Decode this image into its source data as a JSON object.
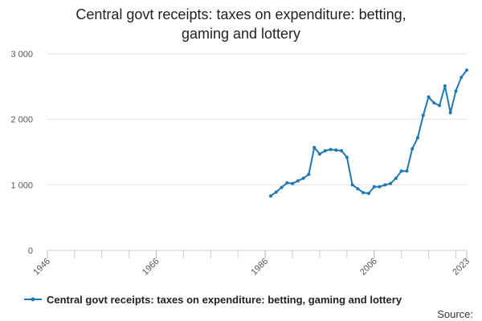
{
  "chart_data": {
    "type": "line",
    "title_line1": "Central govt receipts: taxes on expenditure: betting,",
    "title_line2": "gaming and lottery",
    "xlabel": "",
    "ylabel": "",
    "x_tick_labels": [
      "1946",
      "1966",
      "1986",
      "2006",
      "2023"
    ],
    "x_ticks": [
      1946,
      1966,
      1986,
      2006,
      2023
    ],
    "y_tick_labels": [
      "0",
      "1 000",
      "2 000",
      "3 000"
    ],
    "y_ticks": [
      0,
      1000,
      2000,
      3000
    ],
    "xlim": [
      1946,
      2023
    ],
    "ylim": [
      0,
      3000
    ],
    "grid": "horizontal",
    "legend_position": "bottom",
    "source_label": "Source:",
    "series": [
      {
        "name": "Central govt receipts: taxes on expenditure: betting, gaming and lottery",
        "color": "#1f77b4",
        "x": [
          1987,
          1988,
          1989,
          1990,
          1991,
          1992,
          1993,
          1994,
          1995,
          1996,
          1997,
          1998,
          1999,
          2000,
          2001,
          2002,
          2003,
          2004,
          2005,
          2006,
          2007,
          2008,
          2009,
          2010,
          2011,
          2012,
          2013,
          2014,
          2015,
          2016,
          2017,
          2018,
          2019,
          2020,
          2021,
          2022,
          2023
        ],
        "values": [
          830,
          890,
          960,
          1030,
          1020,
          1060,
          1100,
          1160,
          1570,
          1470,
          1520,
          1540,
          1530,
          1520,
          1420,
          1000,
          940,
          880,
          870,
          970,
          970,
          1000,
          1020,
          1100,
          1210,
          1210,
          1550,
          1720,
          2060,
          2340,
          2250,
          2210,
          2510,
          2100,
          2430,
          2640,
          2750
        ]
      }
    ]
  }
}
